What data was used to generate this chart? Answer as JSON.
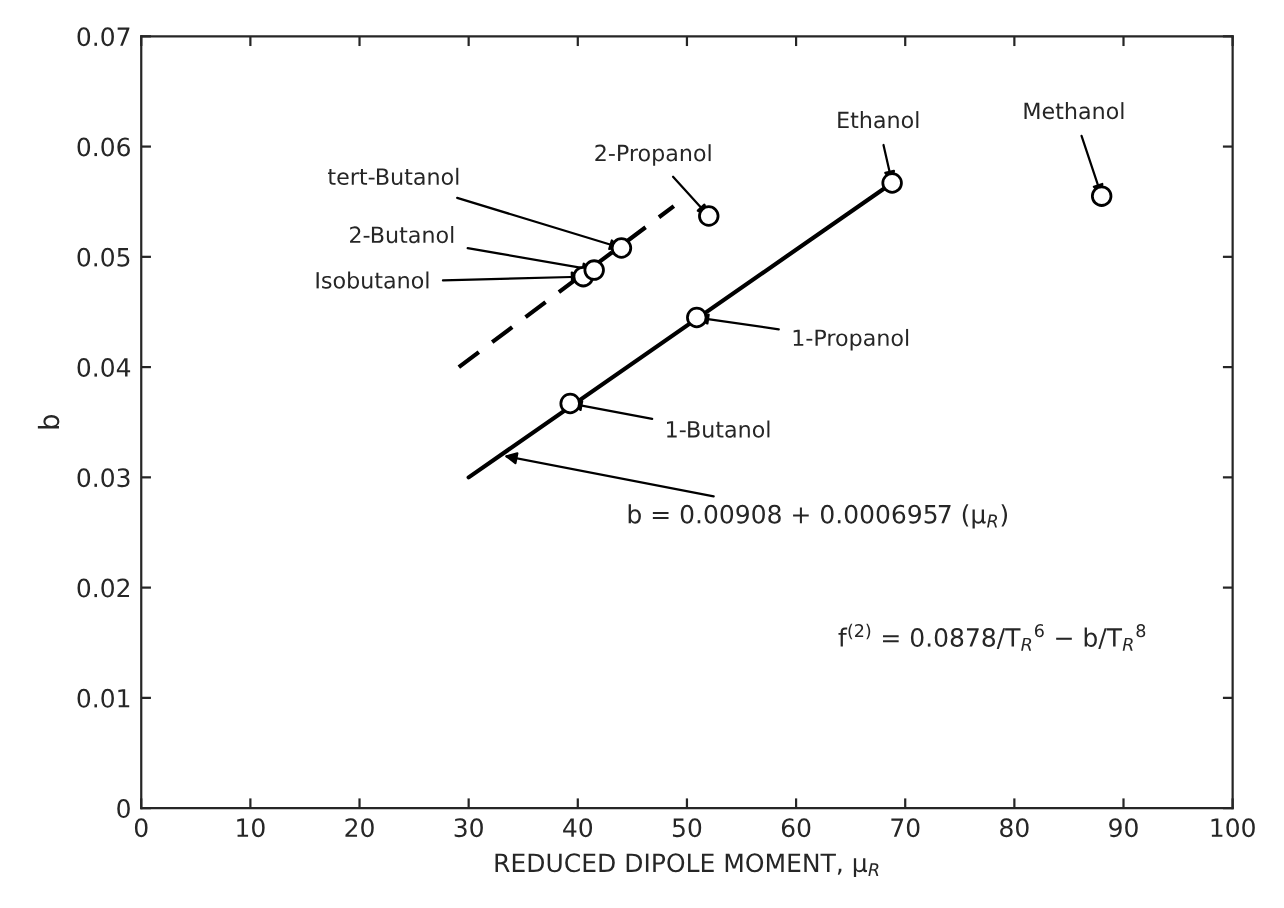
{
  "chart_data": {
    "type": "scatter",
    "xlabel": "REDUCED DIPOLE MOMENT, μ$_{R}$",
    "ylabel": "b",
    "xlim": [
      0,
      100
    ],
    "xticks": [
      0,
      10,
      20,
      30,
      40,
      50,
      60,
      70,
      80,
      90,
      100
    ],
    "ylim": [
      0,
      0.07
    ],
    "yticks": [
      0,
      0.01,
      0.02,
      0.03,
      0.04,
      0.05,
      0.06,
      0.07
    ],
    "grid": false,
    "legend": false,
    "series": [
      {
        "marker": "circle",
        "color": "#000000",
        "x": [
          40.5,
          41.5,
          44,
          52,
          39.3,
          50.9,
          68.8,
          88
        ],
        "values": [
          0.0482,
          0.0488,
          0.0508,
          0.0537,
          0.0367,
          0.0445,
          0.0567,
          0.0555
        ]
      },
      {
        "type": "line",
        "line_style": "solid",
        "color": "#000000",
        "x": [
          30,
          68.8
        ],
        "values": [
          0.03,
          0.0567
        ]
      },
      {
        "type": "line",
        "line_style": "dashed",
        "color": "#000000",
        "x": [
          29.1,
          48.8
        ],
        "values": [
          0.04,
          0.0546
        ]
      }
    ],
    "annotations": [
      {
        "text": "Isobutanol",
        "x": 40.5,
        "y": 0.0482
      },
      {
        "text": "2-Butanol",
        "x": 41.5,
        "y": 0.0488
      },
      {
        "text": "tert-Butanol",
        "x": 44,
        "y": 0.0508
      },
      {
        "text": "2-Propanol",
        "x": 52,
        "y": 0.0537
      },
      {
        "text": "1-Butanol",
        "x": 39.3,
        "y": 0.0367
      },
      {
        "text": "1-Propanol",
        "x": 50.9,
        "y": 0.0445
      },
      {
        "text": "Ethanol",
        "x": 68.8,
        "y": 0.0567
      },
      {
        "text": "Methanol",
        "x": 88,
        "y": 0.0555
      },
      {
        "text": "b = 0.00908 + 0.0006957 (μ$_{R}$)",
        "x": 33,
        "y": 0.032
      },
      "f$^{(2)}$ = 0.0878/T$_{R}$$^{6}$ − b/T$_{R}$$^{8}$"
    ]
  }
}
